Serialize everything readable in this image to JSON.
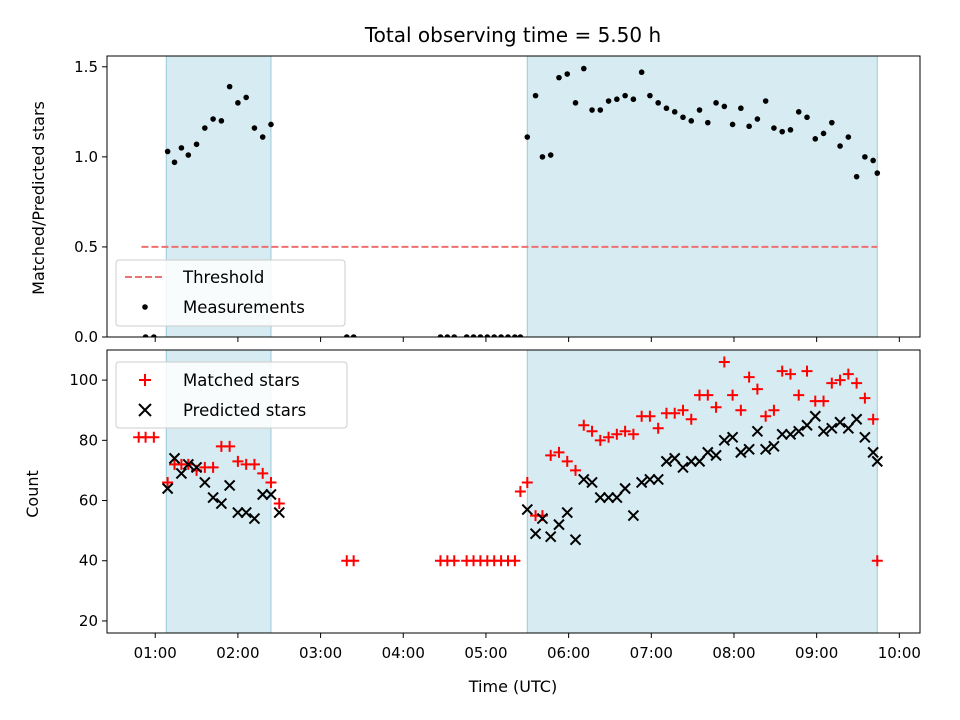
{
  "chart_data": [
    {
      "type": "scatter",
      "title": "Total observing time = 5.50 h",
      "ylabel": "Matched/Predicted stars",
      "xlabel": "",
      "xlim": [
        "00:25",
        "10:15"
      ],
      "ylim": [
        0,
        1.56
      ],
      "yticks": [
        "0.0",
        "0.5",
        "1.0",
        "1.5"
      ],
      "ytick_values": [
        0,
        0.5,
        1.0,
        1.5
      ],
      "shaded_intervals": [
        [
          "01:08",
          "02:24"
        ],
        [
          "05:30",
          "09:44"
        ]
      ],
      "legend_position": "lower-left",
      "threshold": {
        "name": "Threshold",
        "value": 0.5,
        "x_start": "00:50",
        "x_end": "09:44",
        "color": "#f07070"
      },
      "series": [
        {
          "name": "Measurements",
          "color": "#000000",
          "x": [
            "00:53",
            "00:59",
            "01:09",
            "01:14",
            "01:19",
            "01:24",
            "01:30",
            "01:36",
            "01:42",
            "01:48",
            "01:54",
            "02:00",
            "02:06",
            "02:12",
            "02:18",
            "02:24",
            "03:19",
            "03:24",
            "04:27",
            "04:32",
            "04:37",
            "04:46",
            "04:51",
            "04:56",
            "05:01",
            "05:06",
            "05:11",
            "05:16",
            "05:21",
            "05:25",
            "05:30",
            "05:36",
            "05:41",
            "05:47",
            "05:53",
            "05:59",
            "06:05",
            "06:11",
            "06:17",
            "06:23",
            "06:29",
            "06:35",
            "06:41",
            "06:47",
            "06:53",
            "06:59",
            "07:05",
            "07:11",
            "07:17",
            "07:23",
            "07:29",
            "07:35",
            "07:41",
            "07:47",
            "07:53",
            "07:59",
            "08:05",
            "08:11",
            "08:17",
            "08:23",
            "08:29",
            "08:35",
            "08:41",
            "08:47",
            "08:53",
            "08:59",
            "09:05",
            "09:11",
            "09:17",
            "09:23",
            "09:29",
            "09:35",
            "09:41",
            "09:44"
          ],
          "y": [
            0,
            0,
            1.03,
            0.97,
            1.05,
            1.01,
            1.07,
            1.16,
            1.21,
            1.2,
            1.39,
            1.3,
            1.33,
            1.16,
            1.11,
            1.18,
            0,
            0,
            0,
            0,
            0,
            0,
            0,
            0,
            0,
            0,
            0,
            0,
            0,
            0,
            1.11,
            1.34,
            1.0,
            1.01,
            1.44,
            1.46,
            1.3,
            1.49,
            1.26,
            1.26,
            1.31,
            1.32,
            1.34,
            1.32,
            1.47,
            1.34,
            1.3,
            1.27,
            1.25,
            1.22,
            1.2,
            1.26,
            1.19,
            1.3,
            1.28,
            1.18,
            1.27,
            1.17,
            1.21,
            1.31,
            1.16,
            1.14,
            1.15,
            1.25,
            1.22,
            1.1,
            1.13,
            1.19,
            1.06,
            1.11,
            0.89,
            1.0,
            0.98,
            0.91
          ]
        }
      ]
    },
    {
      "type": "scatter",
      "title": "",
      "ylabel": "Count",
      "xlabel": "Time (UTC)",
      "xlim": [
        "00:25",
        "10:15"
      ],
      "ylim": [
        16,
        110
      ],
      "yticks": [
        "20",
        "40",
        "60",
        "80",
        "100"
      ],
      "ytick_values": [
        20,
        40,
        60,
        80,
        100
      ],
      "xticks": [
        "01:00",
        "02:00",
        "03:00",
        "04:00",
        "05:00",
        "06:00",
        "07:00",
        "08:00",
        "09:00",
        "10:00"
      ],
      "shaded_intervals": [
        [
          "01:08",
          "02:24"
        ],
        [
          "05:30",
          "09:44"
        ]
      ],
      "legend_position": "upper-left",
      "series": [
        {
          "name": "Matched stars",
          "marker": "plus",
          "color": "#ff0000",
          "x": [
            "00:48",
            "00:53",
            "00:59",
            "01:09",
            "01:14",
            "01:19",
            "01:24",
            "01:30",
            "01:36",
            "01:42",
            "01:48",
            "01:54",
            "02:00",
            "02:06",
            "02:12",
            "02:18",
            "02:24",
            "02:30",
            "03:19",
            "03:24",
            "04:27",
            "04:32",
            "04:37",
            "04:46",
            "04:51",
            "04:56",
            "05:01",
            "05:06",
            "05:11",
            "05:16",
            "05:21",
            "05:25",
            "05:30",
            "05:36",
            "05:41",
            "05:47",
            "05:53",
            "05:59",
            "06:05",
            "06:11",
            "06:17",
            "06:23",
            "06:29",
            "06:35",
            "06:41",
            "06:47",
            "06:53",
            "06:59",
            "07:05",
            "07:11",
            "07:17",
            "07:23",
            "07:29",
            "07:35",
            "07:41",
            "07:47",
            "07:53",
            "07:59",
            "08:05",
            "08:11",
            "08:17",
            "08:23",
            "08:29",
            "08:35",
            "08:41",
            "08:47",
            "08:53",
            "08:59",
            "09:05",
            "09:11",
            "09:17",
            "09:23",
            "09:29",
            "09:35",
            "09:41",
            "09:44"
          ],
          "y": [
            81,
            81,
            81,
            66,
            72,
            72,
            72,
            70,
            71,
            71,
            78,
            78,
            73,
            72,
            72,
            69,
            66,
            59,
            40,
            40,
            40,
            40,
            40,
            40,
            40,
            40,
            40,
            40,
            40,
            40,
            40,
            63,
            66,
            55,
            55,
            75,
            76,
            73,
            70,
            85,
            83,
            80,
            81,
            82,
            83,
            82,
            88,
            88,
            84,
            89,
            89,
            90,
            87,
            95,
            95,
            91,
            106,
            95,
            90,
            101,
            97,
            88,
            90,
            103,
            102,
            95,
            103,
            93,
            93,
            99,
            100,
            102,
            99,
            94,
            87,
            40
          ]
        },
        {
          "name": "Predicted stars",
          "marker": "x",
          "color": "#000000",
          "x": [
            "01:09",
            "01:14",
            "01:19",
            "01:24",
            "01:30",
            "01:36",
            "01:42",
            "01:48",
            "01:54",
            "02:00",
            "02:06",
            "02:12",
            "02:18",
            "02:24",
            "02:30",
            "05:30",
            "05:36",
            "05:41",
            "05:47",
            "05:53",
            "05:59",
            "06:05",
            "06:11",
            "06:17",
            "06:23",
            "06:29",
            "06:35",
            "06:41",
            "06:47",
            "06:53",
            "06:59",
            "07:05",
            "07:11",
            "07:17",
            "07:23",
            "07:29",
            "07:35",
            "07:41",
            "07:47",
            "07:53",
            "07:59",
            "08:05",
            "08:11",
            "08:17",
            "08:23",
            "08:29",
            "08:35",
            "08:41",
            "08:47",
            "08:53",
            "08:59",
            "09:05",
            "09:11",
            "09:17",
            "09:23",
            "09:29",
            "09:35",
            "09:41",
            "09:44"
          ],
          "y": [
            64,
            74,
            69,
            72,
            71,
            66,
            61,
            59,
            65,
            56,
            56,
            54,
            62,
            62,
            56,
            57,
            49,
            54,
            48,
            52,
            56,
            47,
            67,
            66,
            61,
            61,
            61,
            64,
            55,
            66,
            67,
            67,
            73,
            74,
            71,
            73,
            73,
            76,
            75,
            80,
            81,
            76,
            77,
            83,
            77,
            78,
            82,
            82,
            83,
            85,
            88,
            83,
            84,
            86,
            84,
            87,
            81,
            76,
            73
          ]
        }
      ]
    }
  ]
}
